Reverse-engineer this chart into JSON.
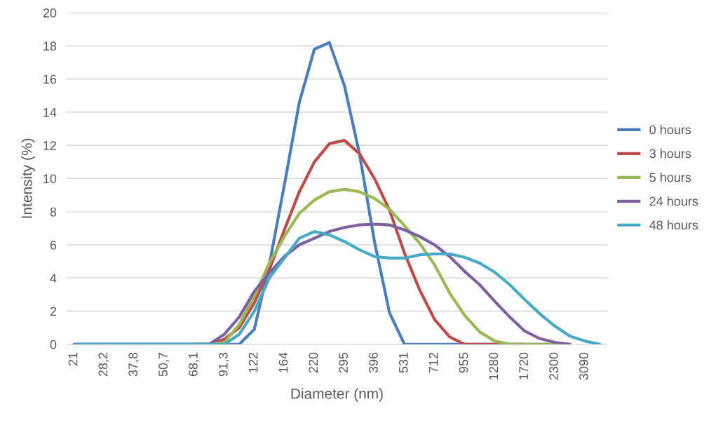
{
  "chart_data": {
    "type": "line",
    "xlabel": "Diameter (nm)",
    "ylabel": "Intensity (%)",
    "categories": [
      "21",
      null,
      "28,2",
      null,
      "37,8",
      null,
      "50,7",
      null,
      "68,1",
      null,
      "91,3",
      null,
      "122",
      null,
      "164",
      null,
      "220",
      null,
      "295",
      null,
      "396",
      null,
      "531",
      null,
      "712",
      null,
      "955",
      null,
      "1280",
      null,
      "1720",
      null,
      "2300",
      null,
      "3090",
      null
    ],
    "ylim": [
      0,
      20
    ],
    "yticks": [
      0,
      2,
      4,
      6,
      8,
      10,
      12,
      14,
      16,
      18,
      20
    ],
    "grid": "y",
    "legend": "right",
    "marker": "none",
    "line_style": "solid",
    "series": [
      {
        "name": "0 hours",
        "color": "#4a7ebb",
        "values": [
          0,
          0,
          0,
          0,
          0,
          0,
          0,
          0,
          0,
          0,
          0,
          0,
          0.9,
          4.8,
          9.6,
          14.6,
          17.8,
          18.2,
          15.6,
          11.5,
          6.2,
          1.9,
          0,
          0,
          0,
          0,
          0,
          0,
          0,
          0,
          0,
          0,
          0,
          0,
          null,
          null
        ]
      },
      {
        "name": "3 hours",
        "color": "#be4b48",
        "values": [
          null,
          null,
          null,
          null,
          null,
          null,
          null,
          null,
          0,
          0,
          0.3,
          1.0,
          2.5,
          4.5,
          6.9,
          9.2,
          11.0,
          12.1,
          12.3,
          11.5,
          10.0,
          8.1,
          5.5,
          3.3,
          1.5,
          0.45,
          0,
          0,
          0,
          0,
          0,
          null,
          null,
          null,
          null,
          null
        ]
      },
      {
        "name": "5 hours",
        "color": "#98b954",
        "values": [
          null,
          null,
          null,
          null,
          null,
          null,
          null,
          null,
          0,
          0,
          0.1,
          1.2,
          2.9,
          4.9,
          6.5,
          7.9,
          8.7,
          9.2,
          9.35,
          9.2,
          8.8,
          8.15,
          7.15,
          6.1,
          4.8,
          3.1,
          1.75,
          0.75,
          0.2,
          0,
          0,
          0,
          0,
          0,
          null,
          null
        ]
      },
      {
        "name": "24 hours",
        "color": "#7d60a0",
        "values": [
          0,
          0,
          0,
          0,
          0,
          0,
          0,
          0,
          0,
          0,
          0.6,
          1.65,
          3.2,
          4.3,
          5.3,
          6.0,
          6.4,
          6.8,
          7.05,
          7.2,
          7.25,
          7.2,
          6.9,
          6.5,
          6.0,
          5.3,
          4.4,
          3.6,
          2.6,
          1.65,
          0.8,
          0.35,
          0.12,
          0,
          null,
          null
        ]
      },
      {
        "name": "48 hours",
        "color": "#46aac5",
        "values": [
          0,
          0,
          0,
          0,
          0,
          0,
          0,
          0,
          0,
          0,
          0,
          0.6,
          2.0,
          4.0,
          5.2,
          6.4,
          6.8,
          6.6,
          6.2,
          5.7,
          5.3,
          5.2,
          5.2,
          5.4,
          5.45,
          5.45,
          5.25,
          4.9,
          4.35,
          3.6,
          2.7,
          1.85,
          1.1,
          0.5,
          0.2,
          0
        ]
      }
    ]
  }
}
